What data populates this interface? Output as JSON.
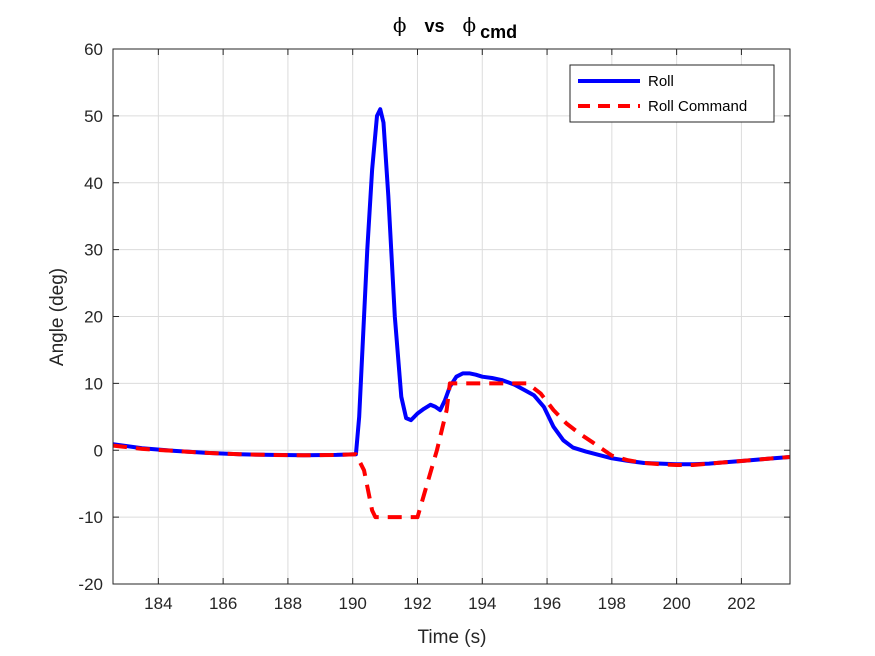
{
  "chart_data": {
    "type": "line",
    "title": {
      "symbol": "ϕ",
      "vs": "vs",
      "symbol2": "ϕ",
      "subscript": "cmd"
    },
    "xlabel": "Time (s)",
    "ylabel": "Angle (deg)",
    "xlim": [
      182.6,
      203.5
    ],
    "ylim": [
      -20,
      60
    ],
    "xticks": [
      184,
      186,
      188,
      190,
      192,
      194,
      196,
      198,
      200,
      202
    ],
    "yticks": [
      -20,
      -10,
      0,
      10,
      20,
      30,
      40,
      50,
      60
    ],
    "grid": true,
    "legend_position": "top-right",
    "series": [
      {
        "name": "Roll",
        "color": "#0000ff",
        "style": "solid",
        "x": [
          182.6,
          183.5,
          184.5,
          185.5,
          186.5,
          187.5,
          188.5,
          189.5,
          190.1,
          190.2,
          190.3,
          190.45,
          190.6,
          190.75,
          190.85,
          190.95,
          191.1,
          191.3,
          191.5,
          191.65,
          191.8,
          192.0,
          192.2,
          192.4,
          192.55,
          192.7,
          192.85,
          193.0,
          193.2,
          193.4,
          193.6,
          193.8,
          194.0,
          194.3,
          194.6,
          195.0,
          195.3,
          195.6,
          195.9,
          196.2,
          196.5,
          196.8,
          197.2,
          197.6,
          198.0,
          198.5,
          199.0,
          199.5,
          200.0,
          200.5,
          201.0,
          201.5,
          202.0,
          202.5,
          203.0,
          203.5
        ],
        "y": [
          0.9,
          0.3,
          -0.1,
          -0.4,
          -0.6,
          -0.7,
          -0.75,
          -0.7,
          -0.6,
          5,
          15,
          30,
          42,
          50,
          51,
          49,
          38,
          20,
          8,
          4.8,
          4.5,
          5.5,
          6.2,
          6.8,
          6.5,
          6.0,
          7.5,
          9.5,
          11.0,
          11.5,
          11.5,
          11.3,
          11.0,
          10.8,
          10.5,
          9.8,
          9.0,
          8.2,
          6.5,
          3.5,
          1.5,
          0.4,
          -0.2,
          -0.7,
          -1.2,
          -1.6,
          -1.9,
          -2.0,
          -2.1,
          -2.1,
          -2.0,
          -1.8,
          -1.6,
          -1.4,
          -1.2,
          -1.0
        ]
      },
      {
        "name": "Roll Command",
        "color": "#ff0000",
        "style": "dashed",
        "x": [
          182.6,
          183.5,
          184.5,
          185.5,
          186.5,
          187.5,
          188.5,
          189.5,
          190.1,
          190.35,
          190.6,
          190.7,
          191.0,
          192.0,
          192.3,
          192.6,
          192.9,
          193.0,
          193.5,
          194.5,
          195.4,
          195.8,
          196.2,
          196.6,
          197.0,
          197.4,
          198.0,
          198.5,
          199.0,
          199.5,
          200.0,
          200.5,
          201.0,
          201.5,
          202.0,
          202.5,
          203.0,
          203.5
        ],
        "y": [
          0.7,
          0.2,
          -0.1,
          -0.4,
          -0.6,
          -0.7,
          -0.75,
          -0.7,
          -0.6,
          -3,
          -9,
          -10,
          -10,
          -10,
          -5,
          0,
          6,
          10,
          10,
          10,
          10,
          8.5,
          6,
          4,
          2.5,
          1.2,
          -0.8,
          -1.5,
          -1.9,
          -2.1,
          -2.2,
          -2.2,
          -2.0,
          -1.8,
          -1.6,
          -1.4,
          -1.2,
          -1.0
        ]
      }
    ]
  }
}
